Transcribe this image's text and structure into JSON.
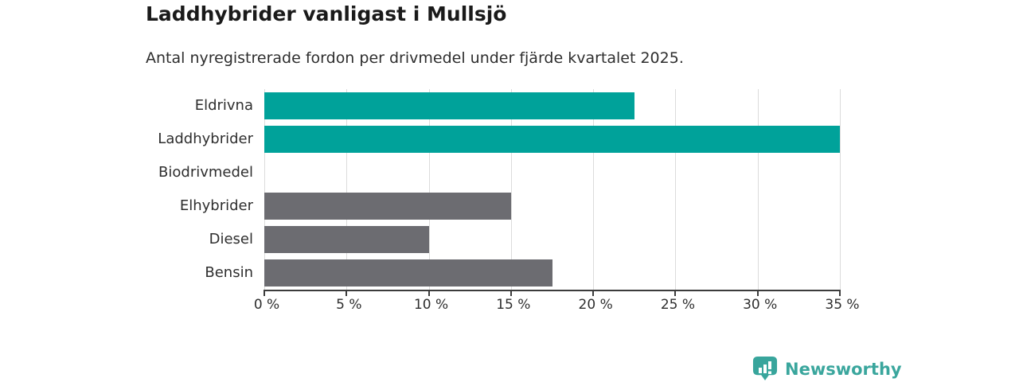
{
  "header": {
    "title": "Laddhybrider vanligast i Mullsjö",
    "subtitle": "Antal nyregistrerade fordon per drivmedel under fjärde kvartalet 2025."
  },
  "chart_data": {
    "type": "bar",
    "orientation": "horizontal",
    "title": "Laddhybrider vanligast i Mullsjö",
    "subtitle": "Antal nyregistrerade fordon per drivmedel under fjärde kvartalet 2025.",
    "categories": [
      "Eldrivna",
      "Laddhybrider",
      "Biodrivmedel",
      "Elhybrider",
      "Diesel",
      "Bensin"
    ],
    "values": [
      22.5,
      35,
      0,
      15,
      10,
      17.5
    ],
    "unit": "%",
    "xlim": [
      0,
      35
    ],
    "x_ticks": [
      0,
      5,
      10,
      15,
      20,
      25,
      30,
      35
    ],
    "x_tick_labels": [
      "0 %",
      "5 %",
      "10 %",
      "15 %",
      "20 %",
      "25 %",
      "30 %",
      "35 %"
    ],
    "bar_colors": [
      "#00a29a",
      "#00a29a",
      "#6c6c71",
      "#6c6c71",
      "#6c6c71",
      "#6c6c71"
    ],
    "grid": true,
    "legend": "none",
    "ylabel": "",
    "xlabel": ""
  },
  "colors": {
    "accent_teal": "#00a29a",
    "neutral_gray": "#6c6c71",
    "gridline": "#dcdcdc",
    "axis": "#3c3c3c",
    "logo_teal": "#3aa69d"
  },
  "footer": {
    "brand": "Newsworthy",
    "logo_icon": "newsworthy-badge-bar-chart-icon"
  }
}
